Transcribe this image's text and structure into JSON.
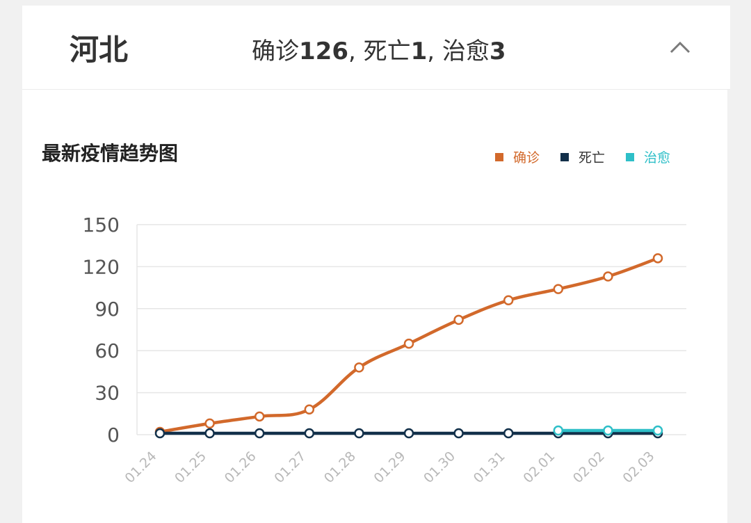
{
  "header": {
    "region": "河北",
    "confirmed_label": "确诊",
    "confirmed_value": "126",
    "death_label": ", 死亡",
    "death_value": "1",
    "cured_label": ", 治愈",
    "cured_value": "3",
    "toggle_icon": "chevron-up-icon"
  },
  "chart_data": {
    "type": "line",
    "title": "最新疫情趋势图",
    "x": [
      "01.24",
      "01.25",
      "01.26",
      "01.27",
      "01.28",
      "01.29",
      "01.30",
      "01.31",
      "02.01",
      "02.02",
      "02.03"
    ],
    "ylim": [
      0,
      150
    ],
    "yticks": [
      0,
      30,
      60,
      90,
      120,
      150
    ],
    "grid": true,
    "legend_position": "top-right",
    "series": [
      {
        "name": "确诊",
        "color": "#d2692b",
        "values": [
          2,
          8,
          13,
          18,
          48,
          65,
          82,
          96,
          104,
          113,
          126
        ]
      },
      {
        "name": "死亡",
        "color": "#12304a",
        "values": [
          1,
          1,
          1,
          1,
          1,
          1,
          1,
          1,
          1,
          1,
          1
        ]
      },
      {
        "name": "治愈",
        "color": "#2ebfc8",
        "values": [
          null,
          null,
          null,
          null,
          null,
          null,
          null,
          null,
          3,
          3,
          3
        ]
      }
    ]
  }
}
